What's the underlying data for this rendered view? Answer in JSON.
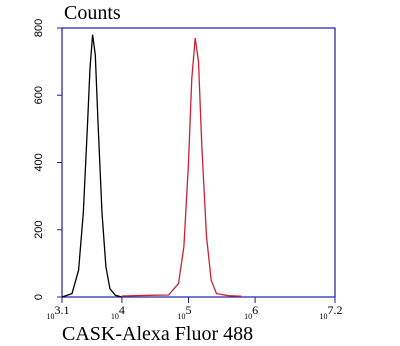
{
  "chart_data": {
    "type": "line",
    "title": "Counts",
    "x_label": "CASK-Alexa Fluor 488",
    "xlim": [
      3.1,
      7.2
    ],
    "xticks": [
      {
        "value": 3.1,
        "label": "10",
        "sup": "3.1"
      },
      {
        "value": 4,
        "label": "10",
        "sup": "4"
      },
      {
        "value": 5,
        "label": "10",
        "sup": "5"
      },
      {
        "value": 6,
        "label": "10",
        "sup": "6"
      },
      {
        "value": 7.2,
        "label": "10",
        "sup": "7.2"
      }
    ],
    "ylim": [
      0,
      800
    ],
    "yticks": [
      0,
      200,
      400,
      600,
      800
    ],
    "axis_color": "#1c1ca8",
    "series": [
      {
        "color": "#000000",
        "x": [
          3.1,
          3.25,
          3.35,
          3.42,
          3.48,
          3.52,
          3.56,
          3.6,
          3.64,
          3.7,
          3.76,
          3.82,
          3.9,
          4.0
        ],
        "values": [
          0,
          10,
          80,
          250,
          500,
          680,
          780,
          720,
          520,
          250,
          90,
          25,
          5,
          0
        ]
      },
      {
        "color": "#cc2233",
        "x": [
          4.0,
          4.4,
          4.7,
          4.85,
          4.93,
          5.0,
          5.05,
          5.1,
          5.15,
          5.2,
          5.27,
          5.34,
          5.42,
          5.6,
          5.8
        ],
        "values": [
          3,
          5,
          6,
          40,
          150,
          400,
          650,
          770,
          700,
          450,
          180,
          50,
          10,
          4,
          2
        ]
      }
    ]
  }
}
